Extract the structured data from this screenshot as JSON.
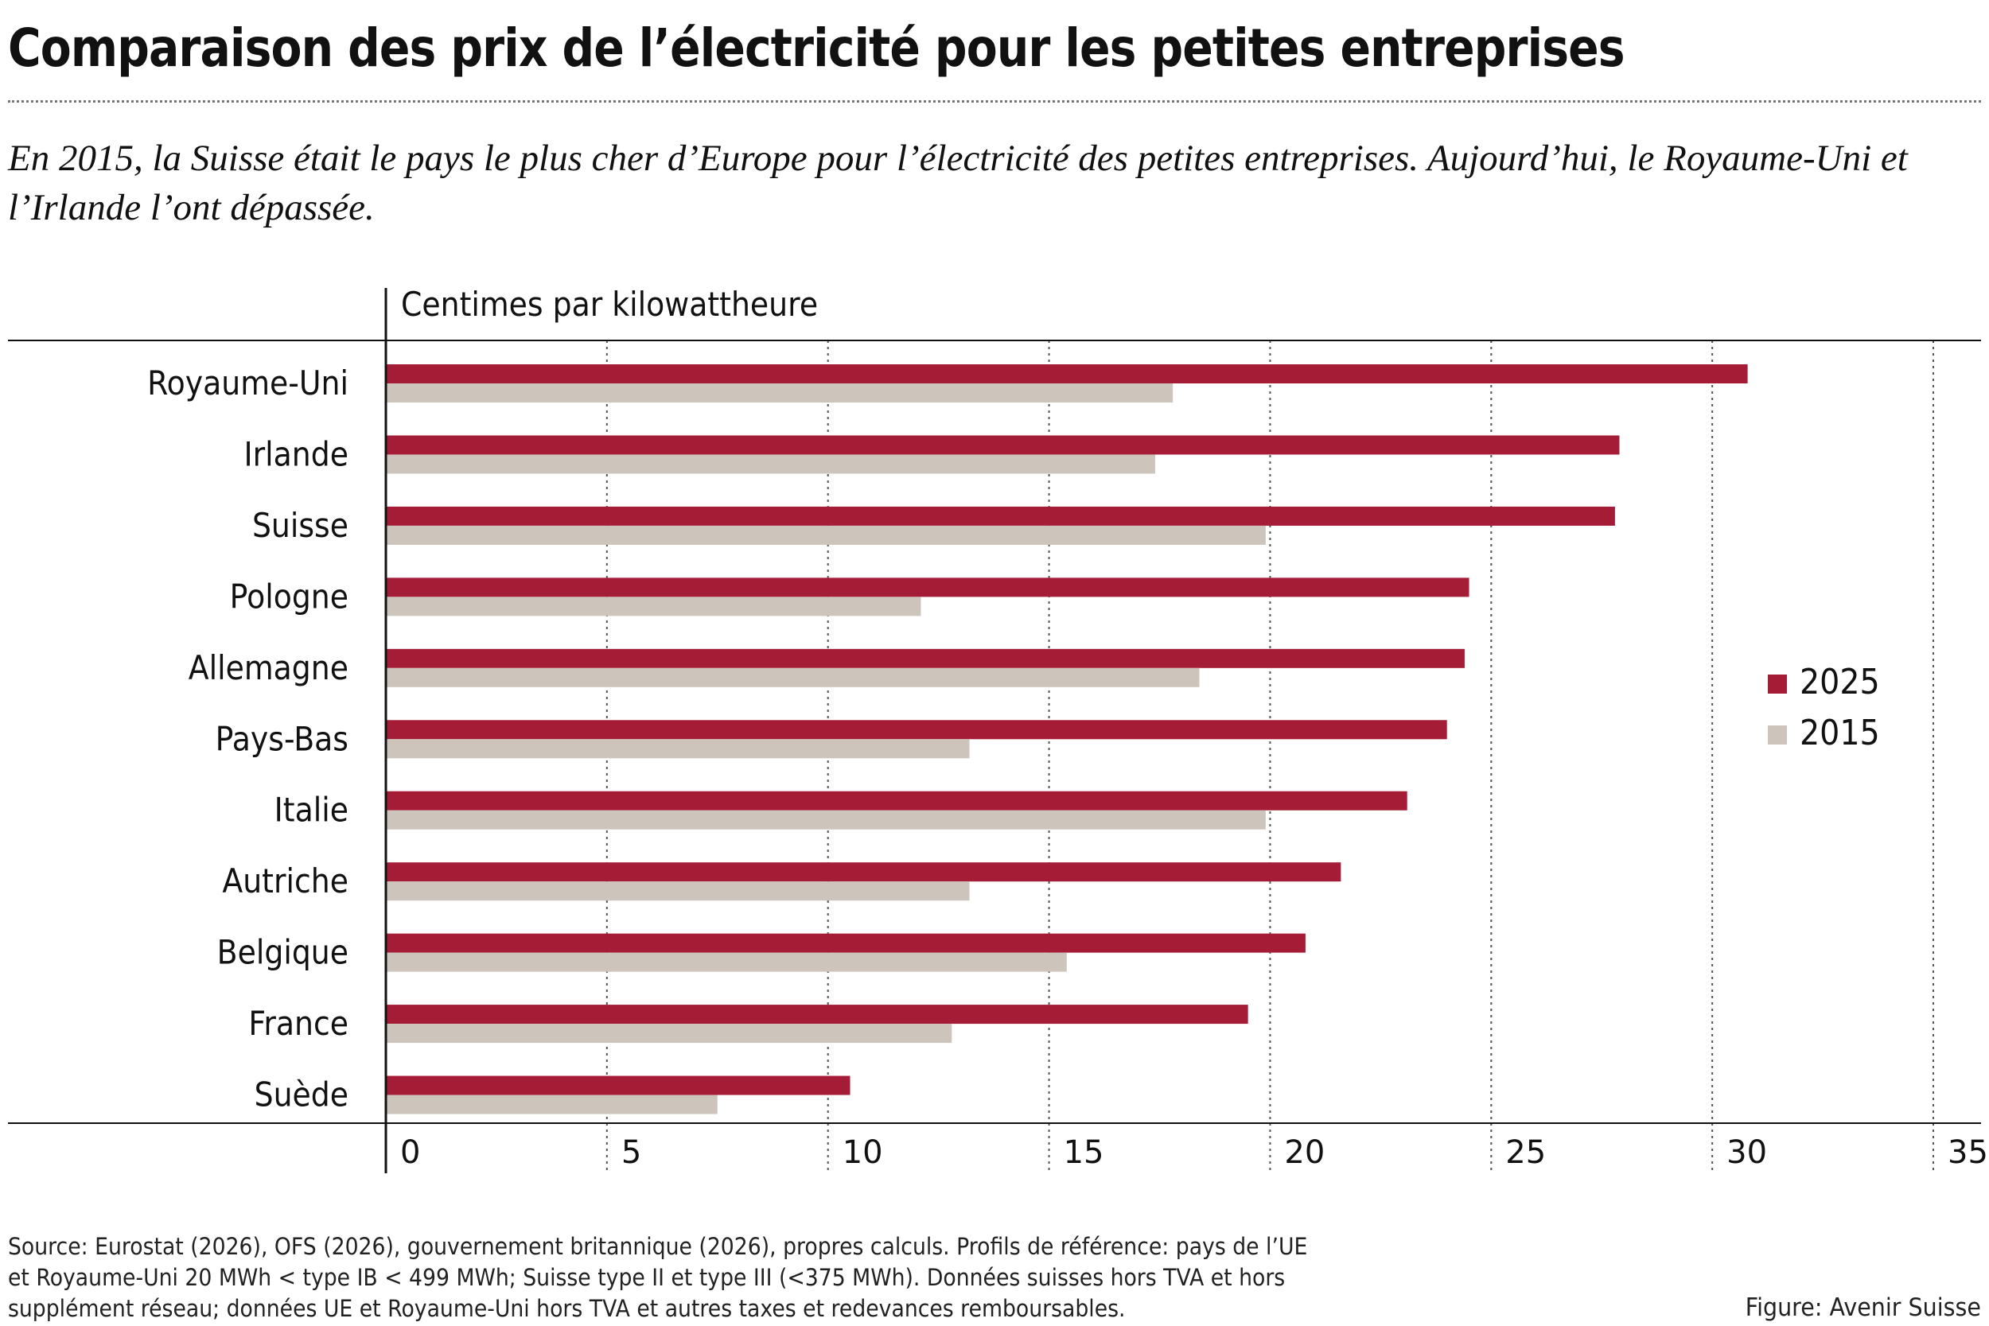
{
  "title": "Comparaison des prix de l’électricité pour les petites entreprises",
  "subtitle": "En 2015, la Suisse était le pays le plus cher d’Europe pour l’électricité des petites entreprises. Aujourd’hui, le Royaume-Uni et l’Irlande l’ont dépassée.",
  "footer": {
    "source": "Source: Eurostat (2026), OFS (2026), gouvernement britannique (2026), propres calculs. Profils de référence: pays de l’UE et Royaume-Uni 20 MWh < type IB < 499 MWh; Suisse type II et type III (<375 MWh). Données suisses hors TVA et hors supplément réseau; données UE et Royaume-Uni hors TVA et autres taxes et redevances remboursables.",
    "credit": "Figure: Avenir Suisse"
  },
  "colors": {
    "series_2025": "#a51c36",
    "series_2015": "#cdc5bb",
    "grid": "#555555",
    "axis": "#111111"
  },
  "chart_data": {
    "type": "bar",
    "orientation": "horizontal",
    "unit_label": "Centimes par kilowattheure",
    "categories": [
      "Royaume-Uni",
      "Irlande",
      "Suisse",
      "Pologne",
      "Allemagne",
      "Pays-Bas",
      "Italie",
      "Autriche",
      "Belgique",
      "France",
      "Suède"
    ],
    "series": [
      {
        "name": "2025",
        "values": [
          30.8,
          27.9,
          27.8,
          24.5,
          24.4,
          24.0,
          23.1,
          21.6,
          20.8,
          19.5,
          10.5
        ]
      },
      {
        "name": "2015",
        "values": [
          17.8,
          17.4,
          19.9,
          12.1,
          18.4,
          13.2,
          19.9,
          13.2,
          15.4,
          12.8,
          7.5
        ]
      }
    ],
    "xlim": [
      0,
      35
    ],
    "xticks": [
      "0",
      "5",
      "10",
      "15",
      "20",
      "25",
      "30",
      "35"
    ],
    "grid": true,
    "legend_position": "right"
  }
}
